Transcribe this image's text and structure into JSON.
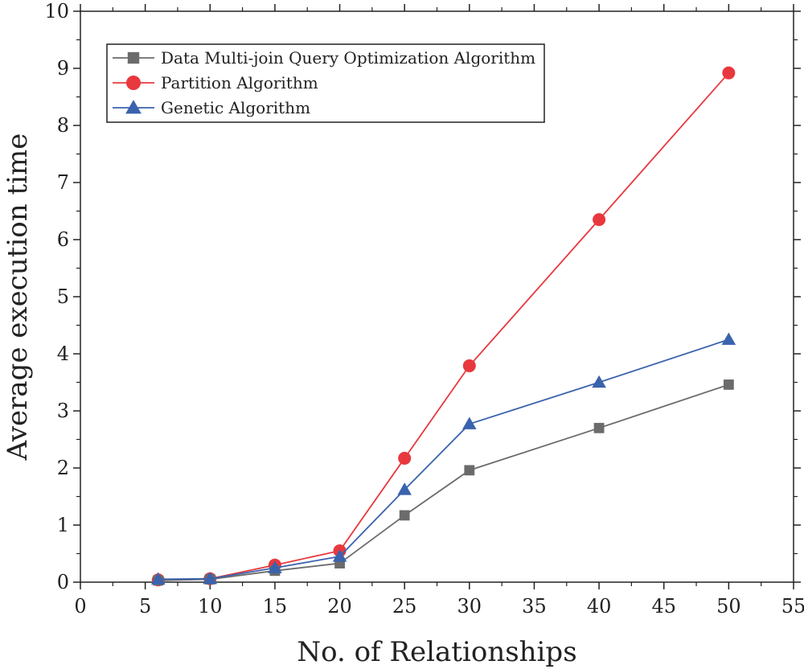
{
  "chart_data": {
    "type": "line",
    "title": "",
    "xlabel": "No. of Relationships",
    "ylabel": "Average execution time",
    "xlim": [
      0,
      55
    ],
    "ylim": [
      0,
      10
    ],
    "xticks": [
      0,
      5,
      10,
      15,
      20,
      25,
      30,
      35,
      40,
      45,
      50,
      55
    ],
    "yticks": [
      0,
      1,
      2,
      3,
      4,
      5,
      6,
      7,
      8,
      9,
      10
    ],
    "grid": false,
    "legend_position": "top-left",
    "x": [
      6,
      10,
      15,
      20,
      25,
      30,
      40,
      50
    ],
    "series": [
      {
        "name": "Data Multi-join Query Optimization Algorithm",
        "marker": "square",
        "color": "#6b6b6b",
        "values": [
          0.03,
          0.05,
          0.2,
          0.33,
          1.17,
          1.96,
          2.7,
          3.46
        ]
      },
      {
        "name": "Partition Algorithm",
        "marker": "circle",
        "color": "#e8383d",
        "values": [
          0.04,
          0.06,
          0.3,
          0.55,
          2.17,
          3.79,
          6.35,
          8.92
        ]
      },
      {
        "name": "Genetic Algorithm",
        "marker": "triangle",
        "color": "#3a63ad",
        "values": [
          0.05,
          0.06,
          0.25,
          0.45,
          1.62,
          2.77,
          3.5,
          4.25
        ]
      }
    ]
  }
}
